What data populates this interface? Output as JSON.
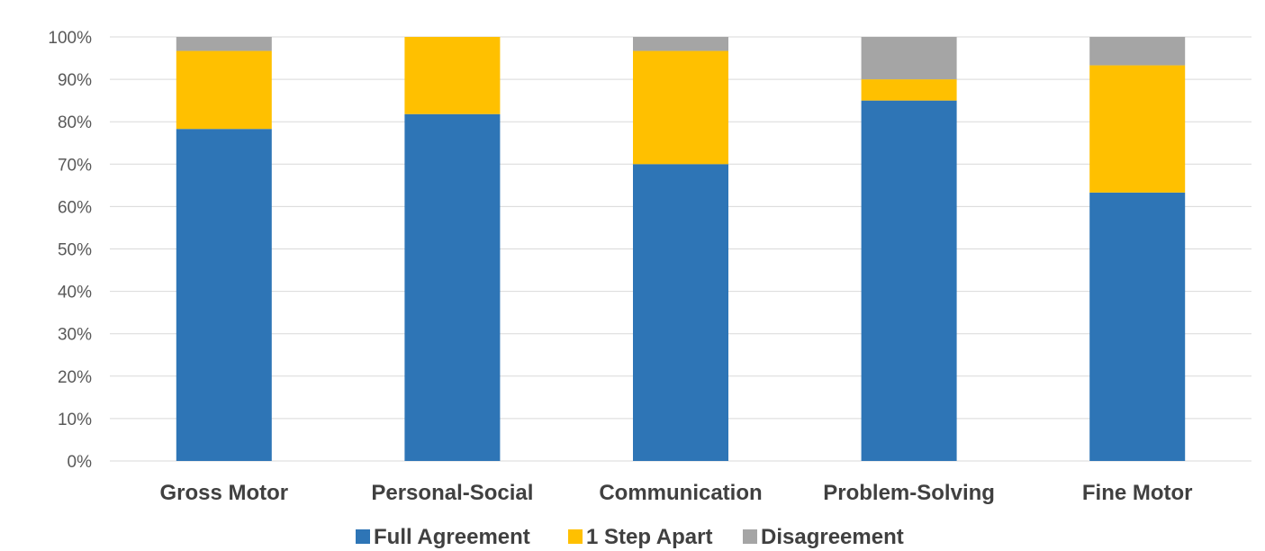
{
  "chart_data": {
    "type": "bar",
    "stacked": true,
    "percent": true,
    "categories": [
      "Gross Motor",
      "Personal-Social",
      "Communication",
      "Problem-Solving",
      "Fine Motor"
    ],
    "series": [
      {
        "name": "Full Agreement",
        "color": "#2E75B6",
        "values": [
          78.3,
          81.8,
          70.0,
          85.0,
          63.3
        ]
      },
      {
        "name": "1 Step Apart",
        "color": "#FFC000",
        "values": [
          18.4,
          18.2,
          26.7,
          5.0,
          30.0
        ]
      },
      {
        "name": "Disagreement",
        "color": "#A5A5A5",
        "values": [
          3.3,
          0.0,
          3.3,
          10.0,
          6.7
        ]
      }
    ],
    "ylim": [
      0,
      100
    ],
    "yticks": [
      "0%",
      "10%",
      "20%",
      "30%",
      "40%",
      "50%",
      "60%",
      "70%",
      "80%",
      "90%",
      "100%"
    ],
    "title": "",
    "xlabel": "",
    "ylabel": "",
    "grid": true,
    "legend_position": "bottom"
  }
}
